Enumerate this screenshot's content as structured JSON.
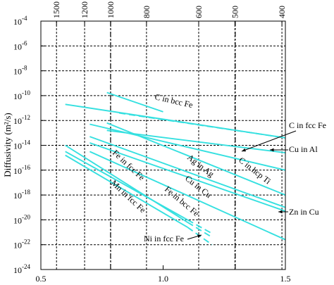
{
  "chart_data": {
    "type": "line",
    "title": "",
    "xlabel": "",
    "ylabel": "Diffusivity (m²/s)",
    "x_units_note": "bottom axis: 1000/T with T in K; top axis: temperature in °C",
    "xlim": [
      0.5,
      1.5
    ],
    "ylim": [
      -24,
      -4
    ],
    "y_scale": "log",
    "grid": true,
    "x_ticks": [
      "0.5",
      "1.0",
      "1.5"
    ],
    "top_ticks": [
      "1500",
      "1200",
      "1000",
      "800",
      "600",
      "500",
      "400"
    ],
    "top_tick_celsius": [
      1500,
      1200,
      1000,
      800,
      600,
      500,
      400
    ],
    "y_ticks": [
      {
        "base": "10",
        "exp": "-4",
        "value": -4
      },
      {
        "base": "10",
        "exp": "-6",
        "value": -6
      },
      {
        "base": "10",
        "exp": "-8",
        "value": -8
      },
      {
        "base": "10",
        "exp": "-10",
        "value": -10
      },
      {
        "base": "10",
        "exp": "-12",
        "value": -12
      },
      {
        "base": "10",
        "exp": "-14",
        "value": -14
      },
      {
        "base": "10",
        "exp": "-16",
        "value": -16
      },
      {
        "base": "10",
        "exp": "-18",
        "value": -18
      },
      {
        "base": "10",
        "exp": "-20",
        "value": -20
      },
      {
        "base": "10",
        "exp": "-22",
        "value": -22
      },
      {
        "base": "10",
        "exp": "-24",
        "value": -24
      }
    ],
    "vertical_reference_lines": [
      0.785,
      1.295
    ],
    "series": [
      {
        "name": "C in bcc Fe",
        "x": [
          0.6,
          1.5
        ],
        "y": [
          -10.7,
          -13.4
        ],
        "extension": {
          "x": [
            0.82,
            1.5
          ],
          "y": [
            -11.4,
            -13.4
          ]
        }
      },
      {
        "name": "C in fcc Fe",
        "x": [
          0.77,
          1.0
        ],
        "y": [
          -9.75,
          -11.3
        ]
      },
      {
        "name": "Cu in Al",
        "x": [
          0.77,
          1.5
        ],
        "y": [
          -12.8,
          -14.6
        ]
      },
      {
        "name": "C in hcp Ti",
        "x": [
          0.7,
          1.5
        ],
        "y": [
          -12.3,
          -16.0
        ]
      },
      {
        "name": "Ag in Ag",
        "x": [
          0.77,
          1.5
        ],
        "y": [
          -12.2,
          -18.0
        ]
      },
      {
        "name": "Cu in Cu",
        "x": [
          0.7,
          1.5
        ],
        "y": [
          -13.8,
          -19.3
        ]
      },
      {
        "name": "Zn in Cu",
        "x": [
          0.7,
          1.5
        ],
        "y": [
          -13.3,
          -19.0
        ]
      },
      {
        "name": "Fe in bcc Fe",
        "x": [
          0.7,
          1.5
        ],
        "y": [
          -14.5,
          -21.6
        ]
      },
      {
        "name": "Fe in fcc Fe",
        "x": [
          0.6,
          1.1
        ],
        "y": [
          -14.5,
          -20.0
        ],
        "extension": {
          "x": [
            1.1,
            1.2
          ],
          "y": [
            -20.0,
            -21.1
          ]
        }
      },
      {
        "name": "Mn in fcc Fe",
        "x": [
          0.6,
          1.1
        ],
        "y": [
          -14.0,
          -20.2
        ],
        "extension": {
          "x": [
            1.1,
            1.2
          ],
          "y": [
            -20.2,
            -21.4
          ]
        }
      },
      {
        "name": "Ni in fcc Fe",
        "x": [
          0.6,
          1.1
        ],
        "y": [
          -14.8,
          -20.6
        ],
        "extension": {
          "x": [
            1.1,
            1.2
          ],
          "y": [
            -20.6,
            -22.0
          ]
        }
      }
    ],
    "labels": [
      {
        "text": "C in bcc Fe"
      },
      {
        "text": "C in fcc Fe"
      },
      {
        "text": "Cu in Al"
      },
      {
        "text": "C in hcp Ti"
      },
      {
        "text": "Ag in Ag"
      },
      {
        "text": "Cu in Cu"
      },
      {
        "text": "Zn in Cu"
      },
      {
        "text": "Fe in bcc Fe"
      },
      {
        "text": "Fe in fcc Fe"
      },
      {
        "text": "Mn in fcc Fe"
      },
      {
        "text": "Ni in fcc Fe"
      }
    ],
    "colors": {
      "series": "#35e0e0",
      "grid": "#000000",
      "text": "#000000"
    }
  }
}
